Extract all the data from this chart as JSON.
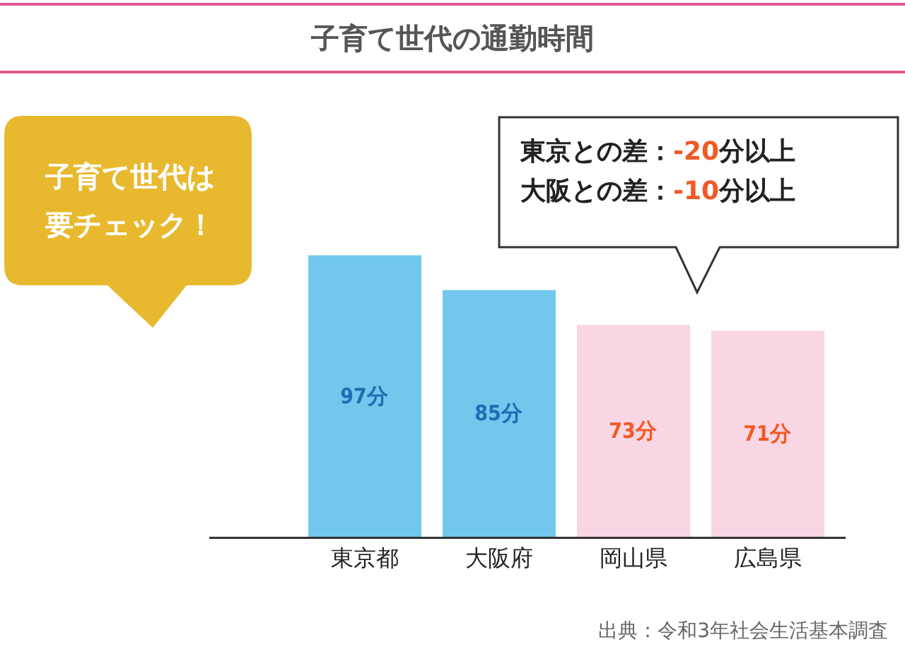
{
  "chart_data": {
    "type": "bar",
    "title": "子育て世代の通勤時間",
    "categories": [
      "東京都",
      "大阪府",
      "岡山県",
      "広島県"
    ],
    "values": [
      97,
      85,
      73,
      71
    ],
    "colors": [
      "#72c8ec",
      "#72c8ec",
      "#f8d6e4",
      "#f8d6e4"
    ],
    "value_labels": [
      "97分",
      "85分",
      "73分",
      "71分"
    ],
    "tick_labels": "x",
    "annotations": [
      "子育て世代は",
      "要チェック！",
      "東京との差：-20分以上",
      "大阪との差：-10分以上",
      "出典：令和3年社会生活基本調査"
    ]
  }
}
